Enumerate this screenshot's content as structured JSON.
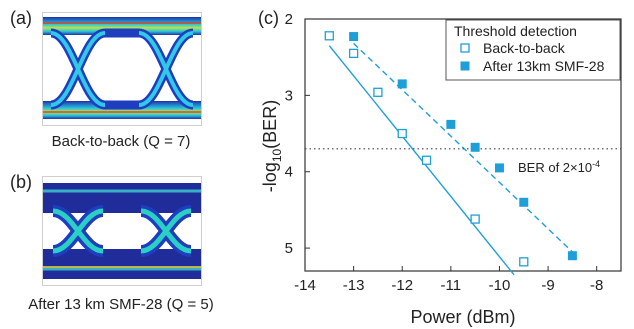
{
  "panels": {
    "a": {
      "label": "(a)",
      "caption": "Back-to-back (Q = 7)"
    },
    "b": {
      "label": "(b)",
      "caption": "After 13 km SMF-28 (Q = 5)"
    },
    "c": {
      "label": "(c)"
    }
  },
  "colors": {
    "series_color": "#1f9fd8",
    "eye_background": "#1b2a8a",
    "eye_trace_hot": "#d8d84a"
  },
  "chart_data": {
    "type": "scatter",
    "xlabel": "Power (dBm)",
    "ylabel": "-log10(BER)",
    "ylabel_main": "-log",
    "ylabel_sub": "10",
    "ylabel_tail": "(BER)",
    "xlim": [
      -14,
      -7.5
    ],
    "ylim": [
      2,
      5.3
    ],
    "y_inverted": true,
    "x_ticks": [
      -14,
      -13,
      -12,
      -11,
      -10,
      -9,
      -8
    ],
    "x_tick_labels": [
      "-14",
      "-13",
      "-12",
      "-11",
      "-10",
      "-9",
      "-8"
    ],
    "y_ticks": [
      2,
      3,
      4,
      5
    ],
    "y_tick_labels": [
      "2",
      "3",
      "4",
      "5"
    ],
    "legend_title": "Threshold detection",
    "legend_position": "top-right",
    "series": [
      {
        "name": "Back-to-back",
        "marker": "open-square",
        "line": "solid",
        "x": [
          -13.5,
          -13.0,
          -12.5,
          -12.0,
          -11.5,
          -10.5,
          -9.5
        ],
        "y": [
          2.22,
          2.45,
          2.96,
          3.5,
          3.85,
          4.62,
          5.18
        ]
      },
      {
        "name": "After 13km SMF-28",
        "marker": "filled-square",
        "line": "dashed",
        "x": [
          -13.0,
          -12.0,
          -11.0,
          -10.5,
          -10.0,
          -9.5,
          -8.5
        ],
        "y": [
          2.23,
          2.85,
          3.38,
          3.68,
          3.95,
          4.4,
          5.1
        ]
      }
    ],
    "fits": [
      {
        "series": "Back-to-back",
        "style": "solid",
        "x": [
          -13.5,
          -9.7
        ],
        "y": [
          2.35,
          5.35
        ]
      },
      {
        "series": "After 13km SMF-28",
        "style": "dashed",
        "x": [
          -13.0,
          -8.5
        ],
        "y": [
          2.32,
          5.05
        ]
      }
    ],
    "threshold": {
      "y": 3.7,
      "style": "dotted",
      "label_prefix": "BER of 2×10",
      "label_exp": "-4"
    }
  }
}
